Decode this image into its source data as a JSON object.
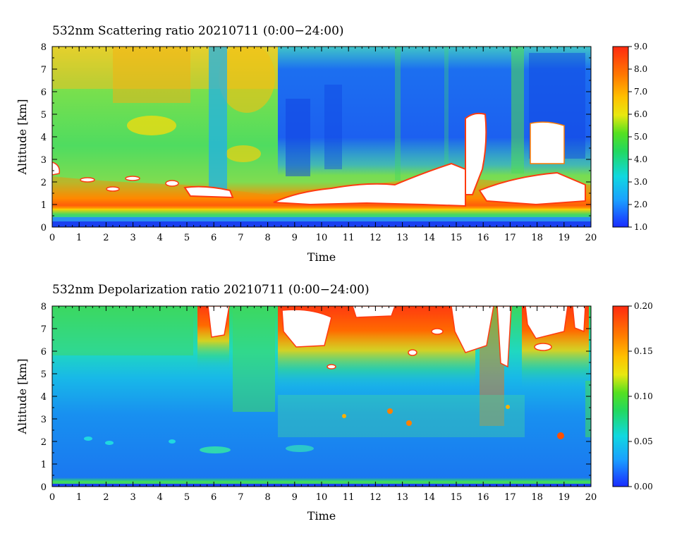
{
  "chart_data": [
    {
      "type": "heatmap",
      "title": "532nm Scattering ratio  20210711 (0:00−24:00)",
      "xlabel": "Time",
      "ylabel": "Altitude [km]",
      "xlim": [
        0,
        20
      ],
      "ylim": [
        0,
        8
      ],
      "x_ticks": [
        "0",
        "1",
        "2",
        "3",
        "4",
        "5",
        "6",
        "7",
        "8",
        "9",
        "10",
        "11",
        "12",
        "13",
        "14",
        "15",
        "16",
        "17",
        "18",
        "19",
        "20"
      ],
      "y_ticks": [
        "0",
        "1",
        "2",
        "3",
        "4",
        "5",
        "6",
        "7",
        "8"
      ],
      "colorbar": {
        "range": [
          1.0,
          9.0
        ],
        "ticks": [
          "1.0",
          "2.0",
          "3.0",
          "4.0",
          "5.0",
          "6.0",
          "7.0",
          "8.0",
          "9.0"
        ],
        "colormap": "rainbow (blue-cyan-green-yellow-orange-red)"
      },
      "over_range_color": "#ffffff"
    },
    {
      "type": "heatmap",
      "title": "532nm Depolarization ratio  20210711 (0:00−24:00)",
      "xlabel": "Time",
      "ylabel": "Altitude [km]",
      "xlim": [
        0,
        20
      ],
      "ylim": [
        0,
        8
      ],
      "x_ticks": [
        "0",
        "1",
        "2",
        "3",
        "4",
        "5",
        "6",
        "7",
        "8",
        "9",
        "10",
        "11",
        "12",
        "13",
        "14",
        "15",
        "16",
        "17",
        "18",
        "19",
        "20"
      ],
      "y_ticks": [
        "0",
        "1",
        "2",
        "3",
        "4",
        "5",
        "6",
        "7",
        "8"
      ],
      "colorbar": {
        "range": [
          0.0,
          0.2
        ],
        "ticks": [
          "0.00",
          "0.05",
          "0.10",
          "0.15",
          "0.20"
        ],
        "colormap": "rainbow (blue-cyan-green-yellow-orange-red)"
      },
      "over_range_color": "#ffffff"
    }
  ]
}
